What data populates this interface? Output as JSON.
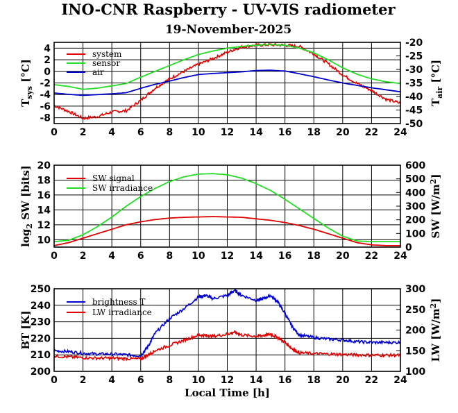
{
  "figure": {
    "title": "INO-CNR Raspberry - UV-VIS radiometer",
    "date": "19-November-2025"
  },
  "colors": {
    "red": "#e00000",
    "green": "#22dd22",
    "blue": "#0000cc"
  },
  "chart_data": [
    {
      "type": "line",
      "name": "temperature",
      "x_ticks": [
        "0",
        "2",
        "4",
        "6",
        "8",
        "10",
        "12",
        "14",
        "16",
        "18",
        "20",
        "22",
        "24"
      ],
      "y_ticks": [
        "4",
        "2",
        "0",
        "-2",
        "-4",
        "-6",
        "-8"
      ],
      "y2_ticks": [
        "-20",
        "-25",
        "-30",
        "-35",
        "-40",
        "-45",
        "-50"
      ],
      "ylabel_main": "T",
      "ylabel_sub": "sys",
      "ylabel_unit": " [°C]",
      "y2label_main": "T",
      "y2label_sub": "air",
      "y2label_unit": " [°C]",
      "xlim": [
        0,
        24
      ],
      "ylim": [
        -9,
        5
      ],
      "y2lim": [
        -50,
        -20
      ],
      "series": [
        {
          "name": "system",
          "color": "#e00000",
          "axis": "left",
          "noisy": true,
          "x": [
            0,
            1,
            2,
            3,
            4,
            5,
            6,
            7,
            8,
            9,
            10,
            11,
            12,
            13,
            14,
            15,
            16,
            17,
            18,
            19,
            20,
            21,
            22,
            23,
            24
          ],
          "y": [
            -5.9,
            -6.9,
            -8.1,
            -7.8,
            -7.0,
            -6.8,
            -5.0,
            -2.9,
            -1.3,
            0.0,
            1.2,
            2.2,
            3.3,
            4.2,
            4.5,
            4.6,
            4.5,
            4.3,
            3.0,
            1.3,
            -0.6,
            -2.1,
            -3.3,
            -4.8,
            -5.5
          ]
        },
        {
          "name": "sensor",
          "color": "#22dd22",
          "axis": "left",
          "noisy": false,
          "x": [
            0,
            1,
            2,
            3,
            4,
            5,
            6,
            7,
            8,
            9,
            10,
            11,
            12,
            13,
            14,
            15,
            16,
            17,
            18,
            19,
            20,
            21,
            22,
            23,
            24
          ],
          "y": [
            -2.3,
            -2.6,
            -3.1,
            -2.9,
            -2.5,
            -2.1,
            -1.0,
            0.0,
            1.0,
            2.0,
            2.9,
            3.5,
            4.0,
            4.3,
            4.5,
            4.6,
            4.5,
            4.0,
            3.2,
            2.0,
            0.6,
            -0.5,
            -1.3,
            -1.8,
            -2.1
          ]
        },
        {
          "name": "air",
          "color": "#0000cc",
          "axis": "right",
          "noisy": false,
          "x": [
            0,
            1,
            2,
            3,
            4,
            5,
            6,
            7,
            8,
            9,
            10,
            11,
            12,
            13,
            14,
            15,
            16,
            17,
            18,
            19,
            20,
            21,
            22,
            23,
            24
          ],
          "y": [
            -38.7,
            -39.2,
            -39.6,
            -39.3,
            -39.0,
            -38.6,
            -37.0,
            -35.5,
            -34.3,
            -33.0,
            -31.9,
            -31.5,
            -31.2,
            -30.9,
            -30.4,
            -30.3,
            -30.6,
            -31.6,
            -32.7,
            -33.9,
            -35.0,
            -35.9,
            -36.8,
            -37.5,
            -38.3
          ]
        }
      ]
    },
    {
      "type": "line",
      "name": "shortwave",
      "x_ticks": [
        "0",
        "2",
        "4",
        "6",
        "8",
        "10",
        "12",
        "14",
        "16",
        "18",
        "20",
        "22",
        "24"
      ],
      "y_ticks": [
        "20",
        "18",
        "16",
        "14",
        "12",
        "10"
      ],
      "y2_ticks": [
        "600",
        "500",
        "400",
        "300",
        "200",
        "100",
        "0"
      ],
      "ylabel_main": "log",
      "ylabel_sub": "2",
      "ylabel_unit": " SW [bits]",
      "y2label_main": "SW [W/m",
      "y2label_sup": "2",
      "y2label_unit": "]",
      "xlim": [
        0,
        24
      ],
      "ylim": [
        9,
        20
      ],
      "y2lim": [
        0,
        600
      ],
      "series": [
        {
          "name": "SW signal",
          "color": "#e00000",
          "axis": "left",
          "noisy": false,
          "x": [
            0,
            1,
            2,
            3,
            4,
            5,
            6,
            7,
            8,
            9,
            10,
            11,
            12,
            13,
            14,
            15,
            16,
            17,
            18,
            19,
            20,
            21,
            22,
            23,
            24
          ],
          "y": [
            9.2,
            9.6,
            10.2,
            10.8,
            11.4,
            12.0,
            12.4,
            12.7,
            12.9,
            13.0,
            13.05,
            13.1,
            13.05,
            13.0,
            12.8,
            12.6,
            12.3,
            11.9,
            11.4,
            10.8,
            10.2,
            9.6,
            9.3,
            9.2,
            9.2
          ]
        },
        {
          "name": "SW irradiance",
          "color": "#22dd22",
          "axis": "right",
          "noisy": false,
          "x": [
            0,
            1,
            2,
            3,
            4,
            5,
            6,
            7,
            8,
            9,
            10,
            11,
            12,
            13,
            14,
            15,
            16,
            17,
            18,
            19,
            20,
            21,
            22,
            23,
            24
          ],
          "y": [
            40,
            50,
            90,
            150,
            220,
            300,
            370,
            430,
            480,
            515,
            535,
            538,
            530,
            505,
            465,
            415,
            350,
            280,
            210,
            140,
            80,
            45,
            40,
            40,
            40
          ]
        }
      ]
    },
    {
      "type": "line",
      "name": "longwave",
      "x_ticks": [
        "0",
        "2",
        "4",
        "6",
        "8",
        "10",
        "12",
        "14",
        "16",
        "18",
        "20",
        "22",
        "24"
      ],
      "y_ticks": [
        "250",
        "240",
        "230",
        "220",
        "210",
        "200"
      ],
      "y2_ticks": [
        "300",
        "250",
        "200",
        "150",
        "100"
      ],
      "ylabel_main": "BT [K]",
      "y2label_main": "LW [W/m",
      "y2label_sup": "2",
      "y2label_unit": "]",
      "xlabel": "Local Time [h]",
      "xlim": [
        0,
        24
      ],
      "ylim": [
        200,
        250
      ],
      "y2lim": [
        100,
        300
      ],
      "series": [
        {
          "name": "brightness T",
          "color": "#0000cc",
          "axis": "left",
          "noisy": true,
          "x": [
            0,
            1,
            2,
            3,
            4,
            5,
            6,
            6.5,
            7,
            8,
            9,
            10,
            10.5,
            11,
            12,
            12.5,
            13,
            14,
            14.5,
            15,
            15.5,
            16,
            16.5,
            17,
            18,
            19,
            20,
            21,
            22,
            23,
            24
          ],
          "y": [
            212.5,
            212,
            211,
            210.5,
            210.5,
            210,
            209.5,
            215,
            223,
            232,
            238,
            245,
            246,
            244,
            246,
            249,
            246,
            243,
            244,
            246,
            242,
            235,
            227,
            222,
            220.5,
            219.5,
            219,
            218,
            217.5,
            217.5,
            217.5
          ]
        },
        {
          "name": "LW irradiance",
          "color": "#e00000",
          "axis": "right",
          "noisy": true,
          "x": [
            0,
            1,
            2,
            3,
            4,
            5,
            6,
            6.5,
            7,
            8,
            9,
            10,
            10.5,
            11,
            12,
            12.5,
            13,
            14,
            14.5,
            15,
            15.5,
            16,
            16.5,
            17,
            18,
            19,
            20,
            21,
            22,
            23,
            24
          ],
          "y": [
            137,
            135,
            133,
            132,
            132,
            131,
            130,
            140,
            150,
            163,
            175,
            188,
            187,
            185,
            190,
            195,
            188,
            185,
            187,
            190,
            182,
            170,
            155,
            145,
            143,
            142,
            141,
            140,
            139,
            139,
            139
          ]
        }
      ]
    }
  ]
}
